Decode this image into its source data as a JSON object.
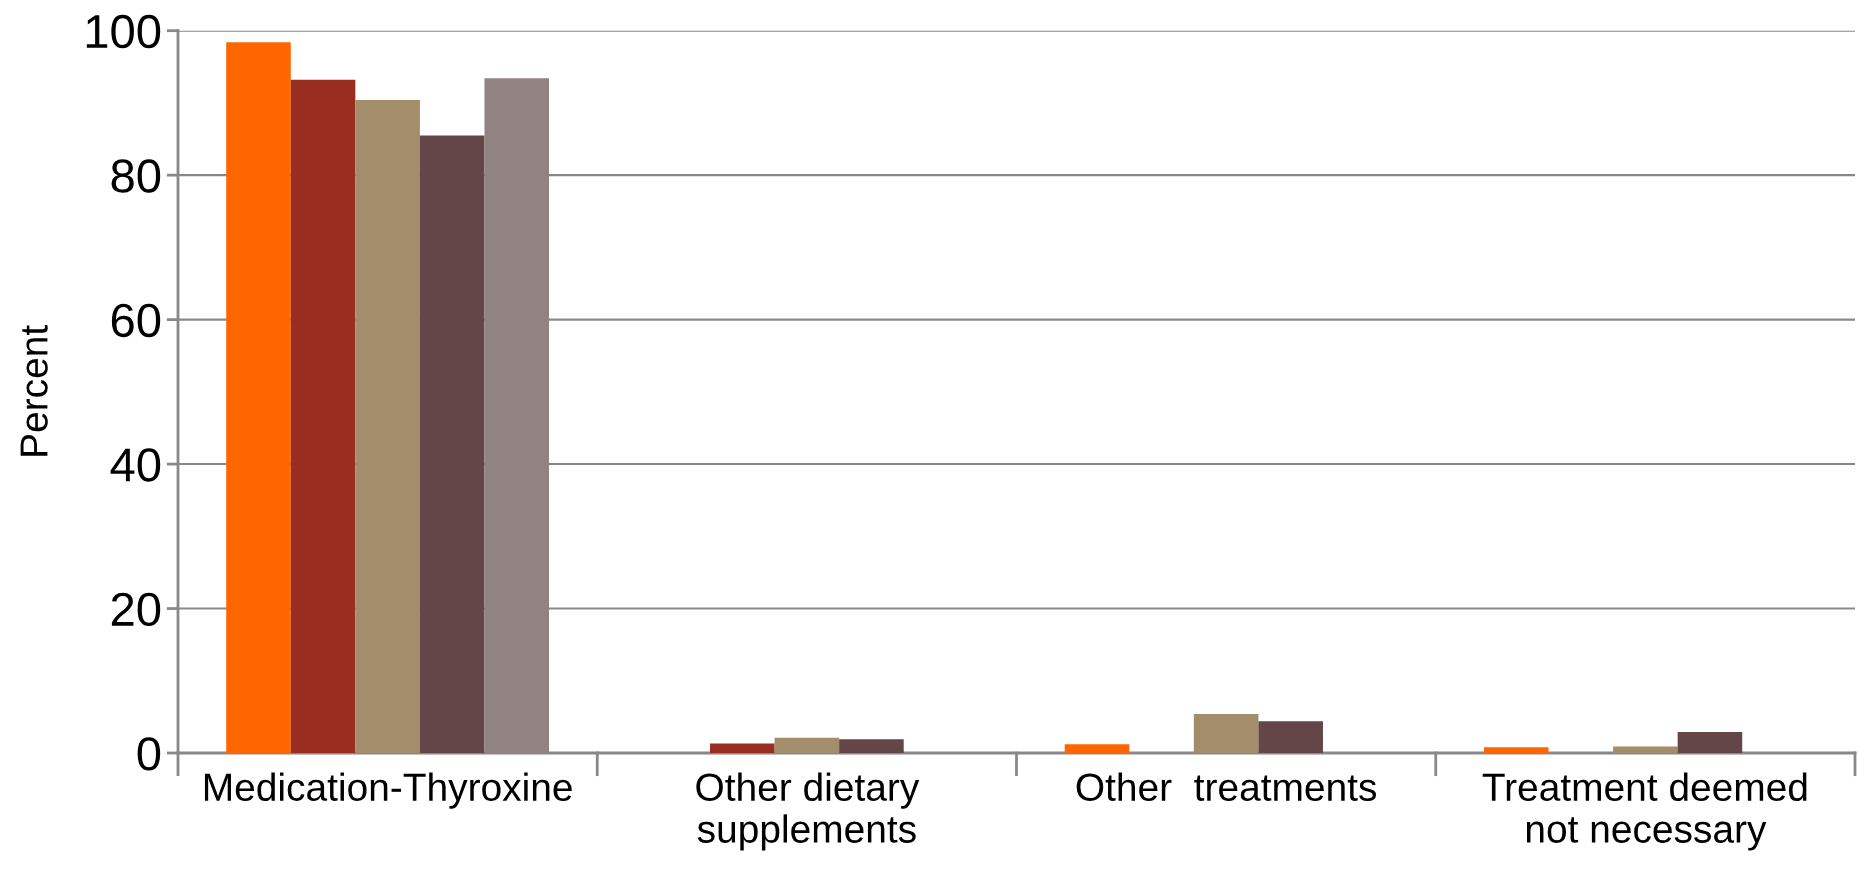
{
  "chart_data": {
    "type": "bar",
    "ylabel": "Percent",
    "categories": [
      "Medication-Thyroxine",
      "Other dietary\nsupplements",
      "Other  treatments",
      "Treatment deemed\nnot necessary"
    ],
    "series": [
      {
        "color": "#ff6600",
        "values": [
          98.4,
          null,
          1.2,
          0.8
        ]
      },
      {
        "color": "#992d1f",
        "values": [
          93.2,
          1.3,
          null,
          null
        ]
      },
      {
        "color": "#a38d6b",
        "values": [
          90.4,
          2.1,
          5.4,
          0.9
        ]
      },
      {
        "color": "#644548",
        "values": [
          85.5,
          1.9,
          4.4,
          2.9
        ]
      },
      {
        "color": "#908382",
        "values": [
          93.4,
          null,
          null,
          null
        ]
      }
    ],
    "ylim": [
      0,
      100
    ],
    "yticks": [
      0,
      20,
      40,
      60,
      80,
      100
    ],
    "grid": "y",
    "legend": false
  }
}
